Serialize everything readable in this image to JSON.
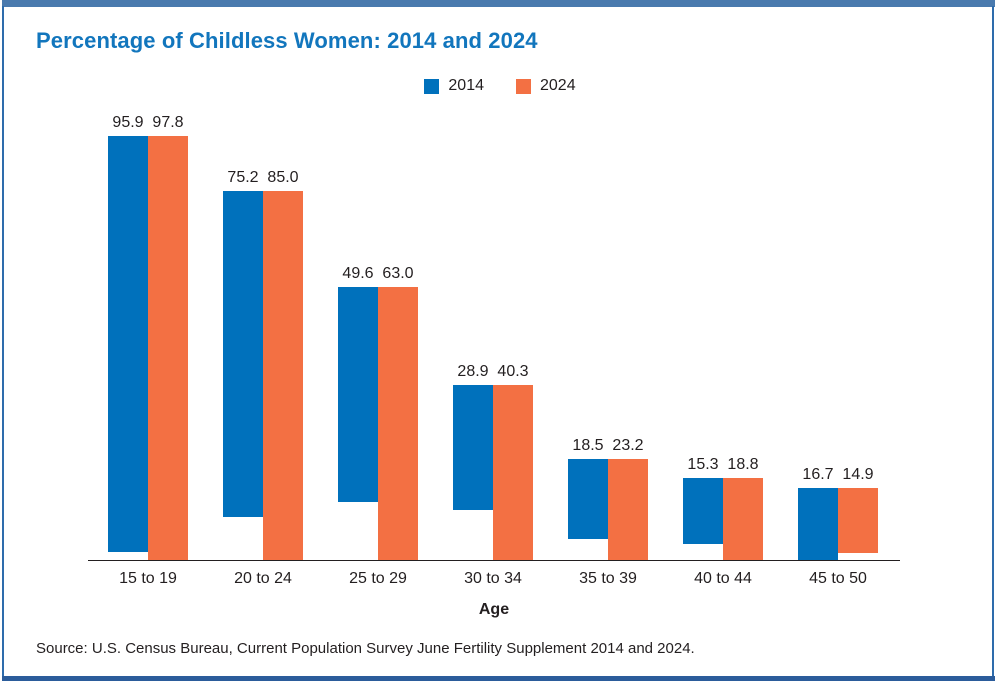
{
  "frame": {
    "top_bar_color": "#4a7aae",
    "bottom_bar_color": "#2b5c9b",
    "side_border_color": "#2e6cac",
    "background": "#ffffff"
  },
  "title": {
    "text": "Percentage of Childless Women: 2014 and 2024",
    "color": "#1276bd"
  },
  "legend": {
    "items": [
      {
        "label": "2014",
        "color": "#0071bc"
      },
      {
        "label": "2024",
        "color": "#f37043"
      }
    ]
  },
  "chart_data": {
    "type": "bar",
    "title": "Percentage of Childless Women: 2014 and 2024",
    "categories": [
      "15 to 19",
      "20 to 24",
      "25 to 29",
      "30 to 34",
      "35 to 39",
      "40 to 44",
      "45 to 50"
    ],
    "series": [
      {
        "name": "2014",
        "color": "#0071bc",
        "values": [
          95.9,
          75.2,
          49.6,
          28.9,
          18.5,
          15.3,
          16.7
        ]
      },
      {
        "name": "2024",
        "color": "#f37043",
        "values": [
          97.8,
          85.0,
          63.0,
          40.3,
          23.2,
          18.8,
          14.9
        ]
      }
    ],
    "xlabel": "Age",
    "ylabel": "",
    "ylim": [
      0,
      100
    ],
    "grid": false,
    "legend_position": "top-center",
    "value_labels": true,
    "value_label_decimals": 1
  },
  "source": {
    "text": "Source: U.S. Census Bureau, Current Population Survey June Fertility Supplement 2014 and 2024."
  }
}
